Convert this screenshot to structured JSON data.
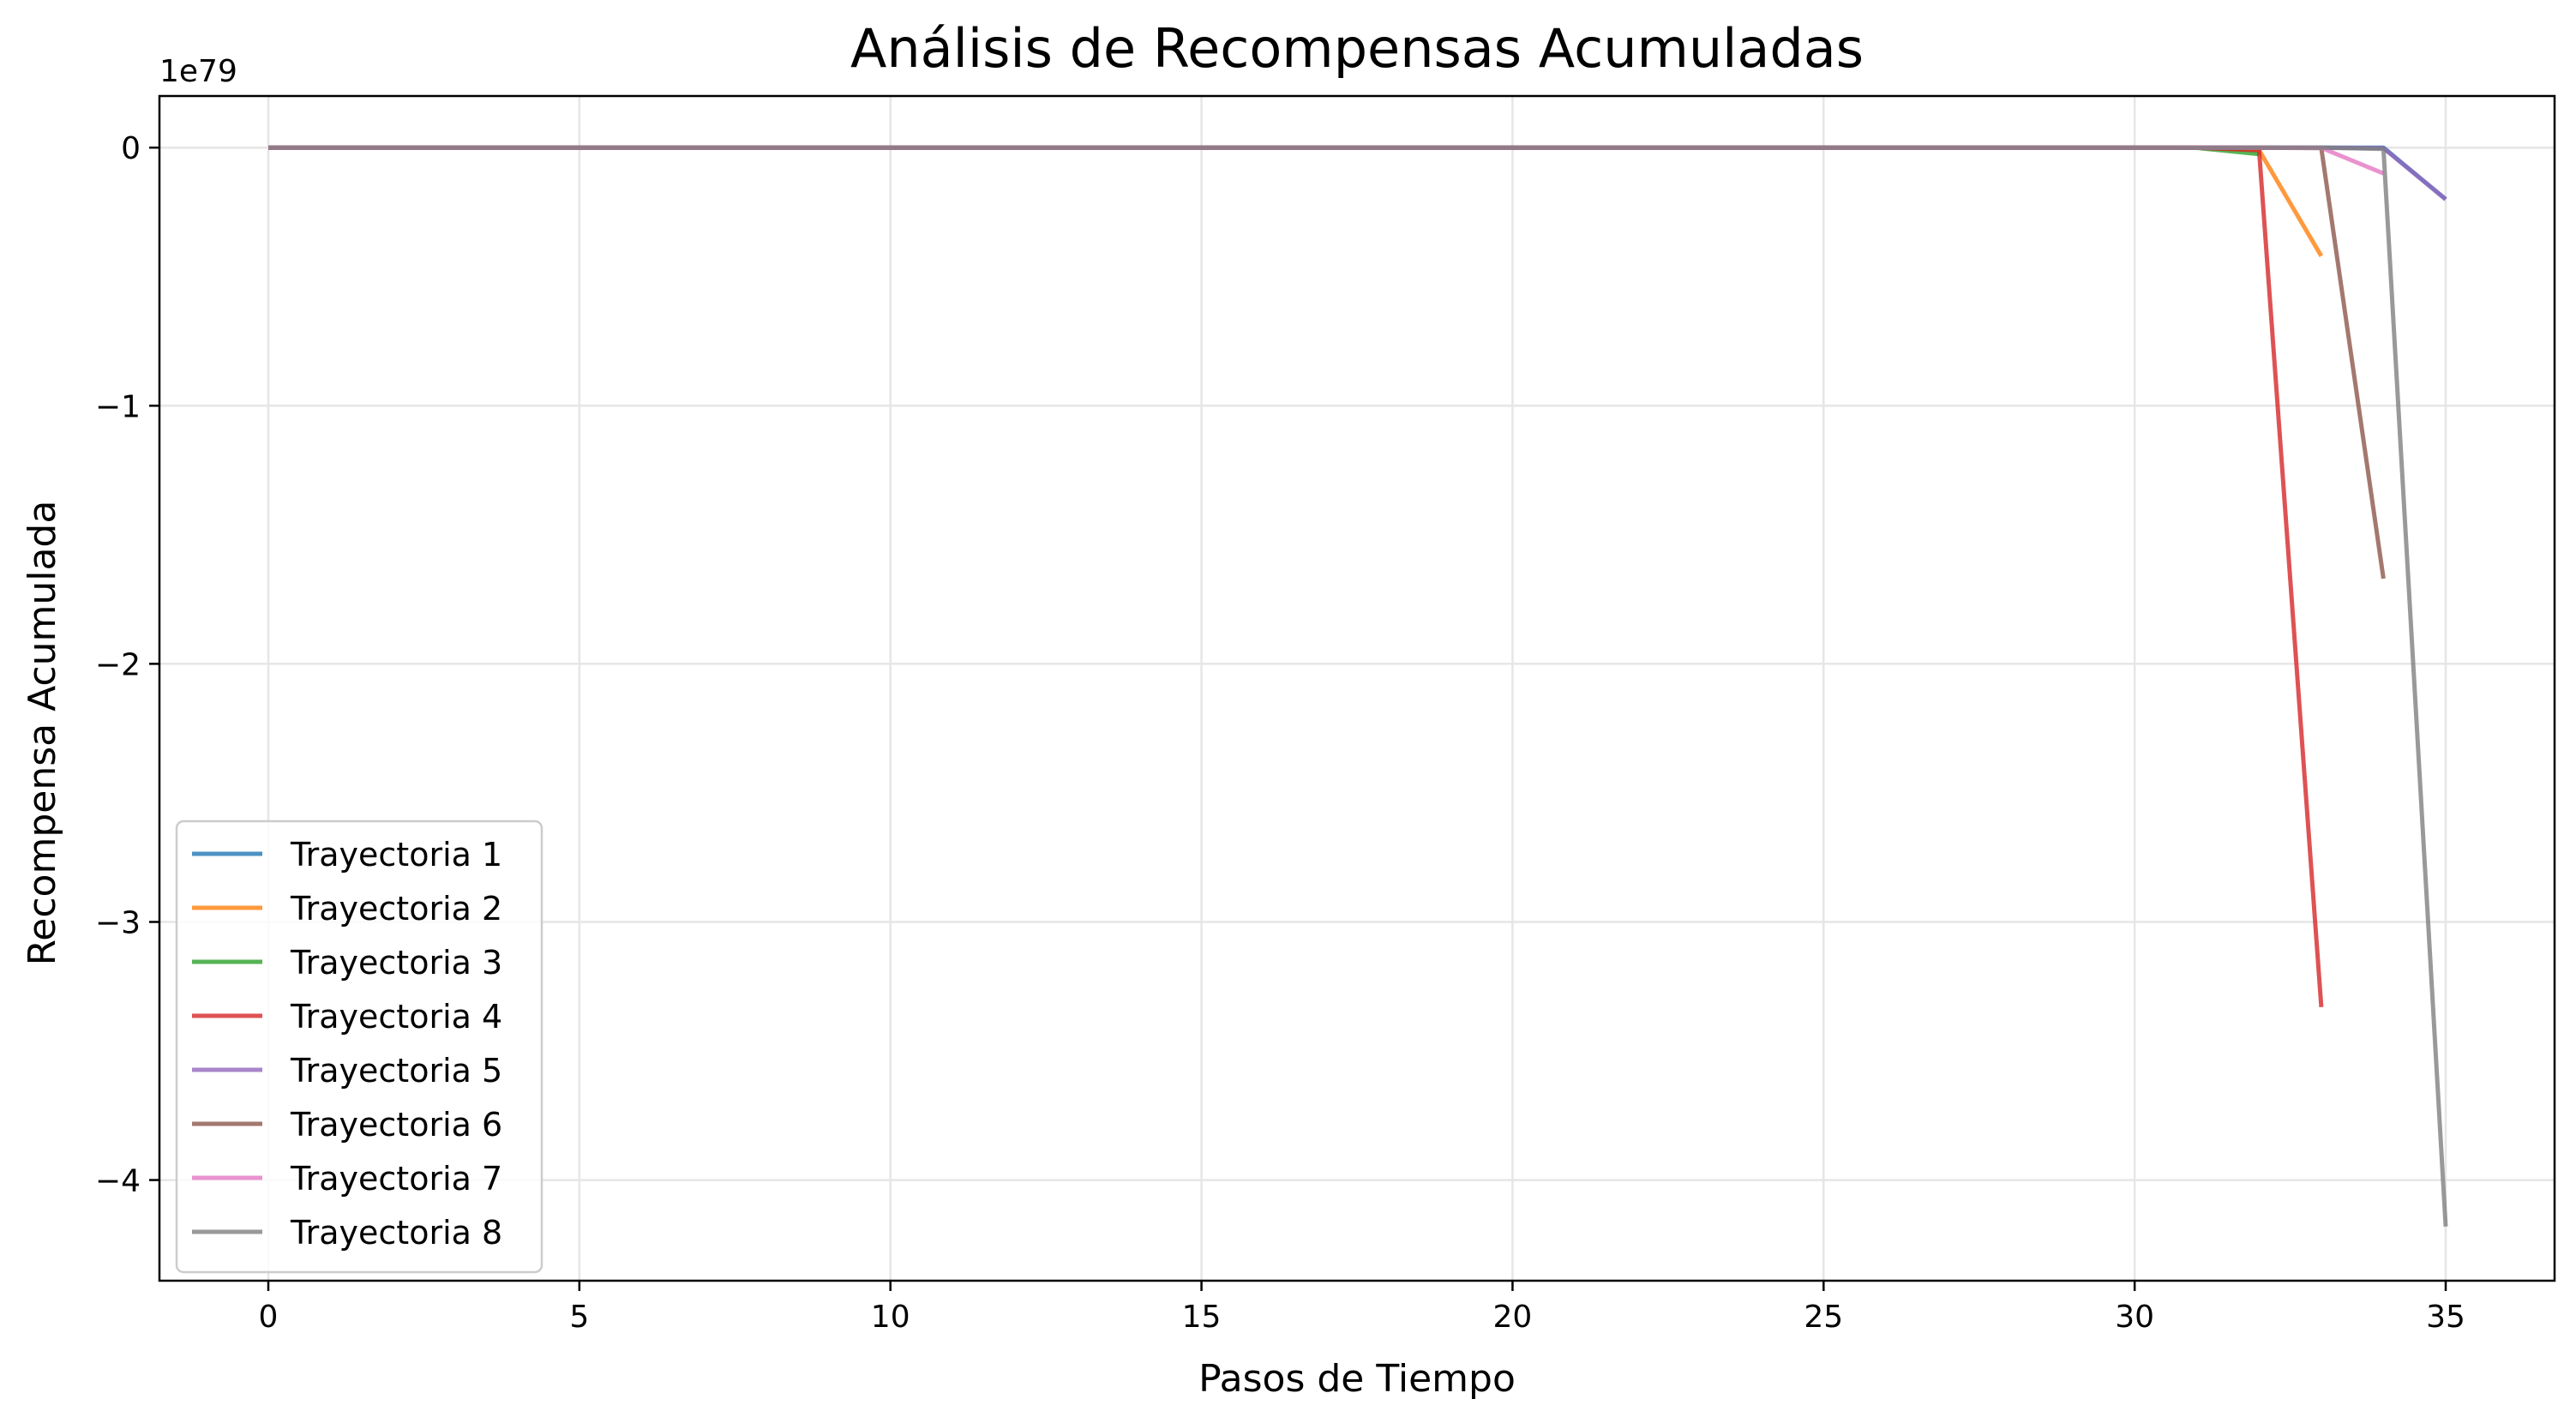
{
  "chart_data": {
    "type": "line",
    "title": "Análisis de Recompensas Acumuladas",
    "xlabel": "Pasos de Tiempo",
    "ylabel": "Recompensa Acumulada",
    "y_offset_label": "1e79",
    "xlim": [
      -1.75,
      36.75
    ],
    "ylim": [
      -4.39,
      0.2
    ],
    "x_ticks": [
      0,
      5,
      10,
      15,
      20,
      25,
      30,
      35
    ],
    "x_tick_labels": [
      "0",
      "5",
      "10",
      "15",
      "20",
      "25",
      "30",
      "35"
    ],
    "y_ticks": [
      0,
      -1,
      -2,
      -3,
      -4
    ],
    "y_tick_labels": [
      "0",
      "−1",
      "−2",
      "−3",
      "−4"
    ],
    "grid": true,
    "legend_position": "lower-left",
    "series": [
      {
        "name": "Trayectoria 1",
        "color": "#1f77b4",
        "x": [
          0,
          1,
          2,
          3,
          4,
          5,
          6,
          7,
          8,
          9,
          10,
          11,
          12,
          13,
          14,
          15,
          16,
          17,
          18,
          19,
          20,
          21,
          22,
          23,
          24,
          25,
          26,
          27,
          28,
          29,
          30,
          31,
          32,
          33,
          34,
          35
        ],
        "y": [
          0,
          0,
          0,
          0,
          0,
          0,
          0,
          0,
          0,
          0,
          0,
          0,
          0,
          0,
          0,
          0,
          0,
          0,
          0,
          0,
          0,
          0,
          0,
          0,
          0,
          0,
          0,
          0,
          0,
          0,
          0,
          0,
          0,
          0,
          0,
          -0.2
        ]
      },
      {
        "name": "Trayectoria 2",
        "color": "#ff7f0e",
        "x": [
          0,
          1,
          2,
          3,
          4,
          5,
          6,
          7,
          8,
          9,
          10,
          11,
          12,
          13,
          14,
          15,
          16,
          17,
          18,
          19,
          20,
          21,
          22,
          23,
          24,
          25,
          26,
          27,
          28,
          29,
          30,
          31,
          32,
          33
        ],
        "y": [
          0,
          0,
          0,
          0,
          0,
          0,
          0,
          0,
          0,
          0,
          0,
          0,
          0,
          0,
          0,
          0,
          0,
          0,
          0,
          0,
          0,
          0,
          0,
          0,
          0,
          0,
          0,
          0,
          0,
          0,
          0,
          0,
          -0.01,
          -0.42
        ]
      },
      {
        "name": "Trayectoria 3",
        "color": "#2ca02c",
        "x": [
          0,
          1,
          2,
          3,
          4,
          5,
          6,
          7,
          8,
          9,
          10,
          11,
          12,
          13,
          14,
          15,
          16,
          17,
          18,
          19,
          20,
          21,
          22,
          23,
          24,
          25,
          26,
          27,
          28,
          29,
          30,
          31,
          32
        ],
        "y": [
          0,
          0,
          0,
          0,
          0,
          0,
          0,
          0,
          0,
          0,
          0,
          0,
          0,
          0,
          0,
          0,
          0,
          0,
          0,
          0,
          0,
          0,
          0,
          0,
          0,
          0,
          0,
          0,
          0,
          0,
          0,
          -0.001,
          -0.025
        ]
      },
      {
        "name": "Trayectoria 4",
        "color": "#d62728",
        "x": [
          0,
          1,
          2,
          3,
          4,
          5,
          6,
          7,
          8,
          9,
          10,
          11,
          12,
          13,
          14,
          15,
          16,
          17,
          18,
          19,
          20,
          21,
          22,
          23,
          24,
          25,
          26,
          27,
          28,
          29,
          30,
          31,
          32,
          33
        ],
        "y": [
          0,
          0,
          0,
          0,
          0,
          0,
          0,
          0,
          0,
          0,
          0,
          0,
          0,
          0,
          0,
          0,
          0,
          0,
          0,
          0,
          0,
          0,
          0,
          0,
          0,
          0,
          0,
          0,
          0,
          0,
          0,
          0,
          -0.01,
          -3.33
        ]
      },
      {
        "name": "Trayectoria 5",
        "color": "#9467bd",
        "x": [
          0,
          1,
          2,
          3,
          4,
          5,
          6,
          7,
          8,
          9,
          10,
          11,
          12,
          13,
          14,
          15,
          16,
          17,
          18,
          19,
          20,
          21,
          22,
          23,
          24,
          25,
          26,
          27,
          28,
          29,
          30,
          31,
          32,
          33,
          34,
          35
        ],
        "y": [
          0,
          0,
          0,
          0,
          0,
          0,
          0,
          0,
          0,
          0,
          0,
          0,
          0,
          0,
          0,
          0,
          0,
          0,
          0,
          0,
          0,
          0,
          0,
          0,
          0,
          0,
          0,
          0,
          0,
          0,
          0,
          0,
          0,
          0,
          -0.002,
          -0.2
        ]
      },
      {
        "name": "Trayectoria 6",
        "color": "#8c564b",
        "x": [
          0,
          1,
          2,
          3,
          4,
          5,
          6,
          7,
          8,
          9,
          10,
          11,
          12,
          13,
          14,
          15,
          16,
          17,
          18,
          19,
          20,
          21,
          22,
          23,
          24,
          25,
          26,
          27,
          28,
          29,
          30,
          31,
          32,
          33,
          34
        ],
        "y": [
          0,
          0,
          0,
          0,
          0,
          0,
          0,
          0,
          0,
          0,
          0,
          0,
          0,
          0,
          0,
          0,
          0,
          0,
          0,
          0,
          0,
          0,
          0,
          0,
          0,
          0,
          0,
          0,
          0,
          0,
          0,
          0,
          0,
          -0.002,
          -1.67
        ]
      },
      {
        "name": "Trayectoria 7",
        "color": "#e377c2",
        "x": [
          0,
          1,
          2,
          3,
          4,
          5,
          6,
          7,
          8,
          9,
          10,
          11,
          12,
          13,
          14,
          15,
          16,
          17,
          18,
          19,
          20,
          21,
          22,
          23,
          24,
          25,
          26,
          27,
          28,
          29,
          30,
          31,
          32,
          33,
          34
        ],
        "y": [
          0,
          0,
          0,
          0,
          0,
          0,
          0,
          0,
          0,
          0,
          0,
          0,
          0,
          0,
          0,
          0,
          0,
          0,
          0,
          0,
          0,
          0,
          0,
          0,
          0,
          0,
          0,
          0,
          0,
          0,
          0,
          0,
          0,
          -0.001,
          -0.1
        ]
      },
      {
        "name": "Trayectoria 8",
        "color": "#7f7f7f",
        "x": [
          0,
          1,
          2,
          3,
          4,
          5,
          6,
          7,
          8,
          9,
          10,
          11,
          12,
          13,
          14,
          15,
          16,
          17,
          18,
          19,
          20,
          21,
          22,
          23,
          24,
          25,
          26,
          27,
          28,
          29,
          30,
          31,
          32,
          33,
          34,
          35
        ],
        "y": [
          0,
          0,
          0,
          0,
          0,
          0,
          0,
          0,
          0,
          0,
          0,
          0,
          0,
          0,
          0,
          0,
          0,
          0,
          0,
          0,
          0,
          0,
          0,
          0,
          0,
          0,
          0,
          0,
          0,
          0,
          0,
          0,
          0,
          0,
          -0.005,
          -4.18
        ]
      }
    ]
  }
}
